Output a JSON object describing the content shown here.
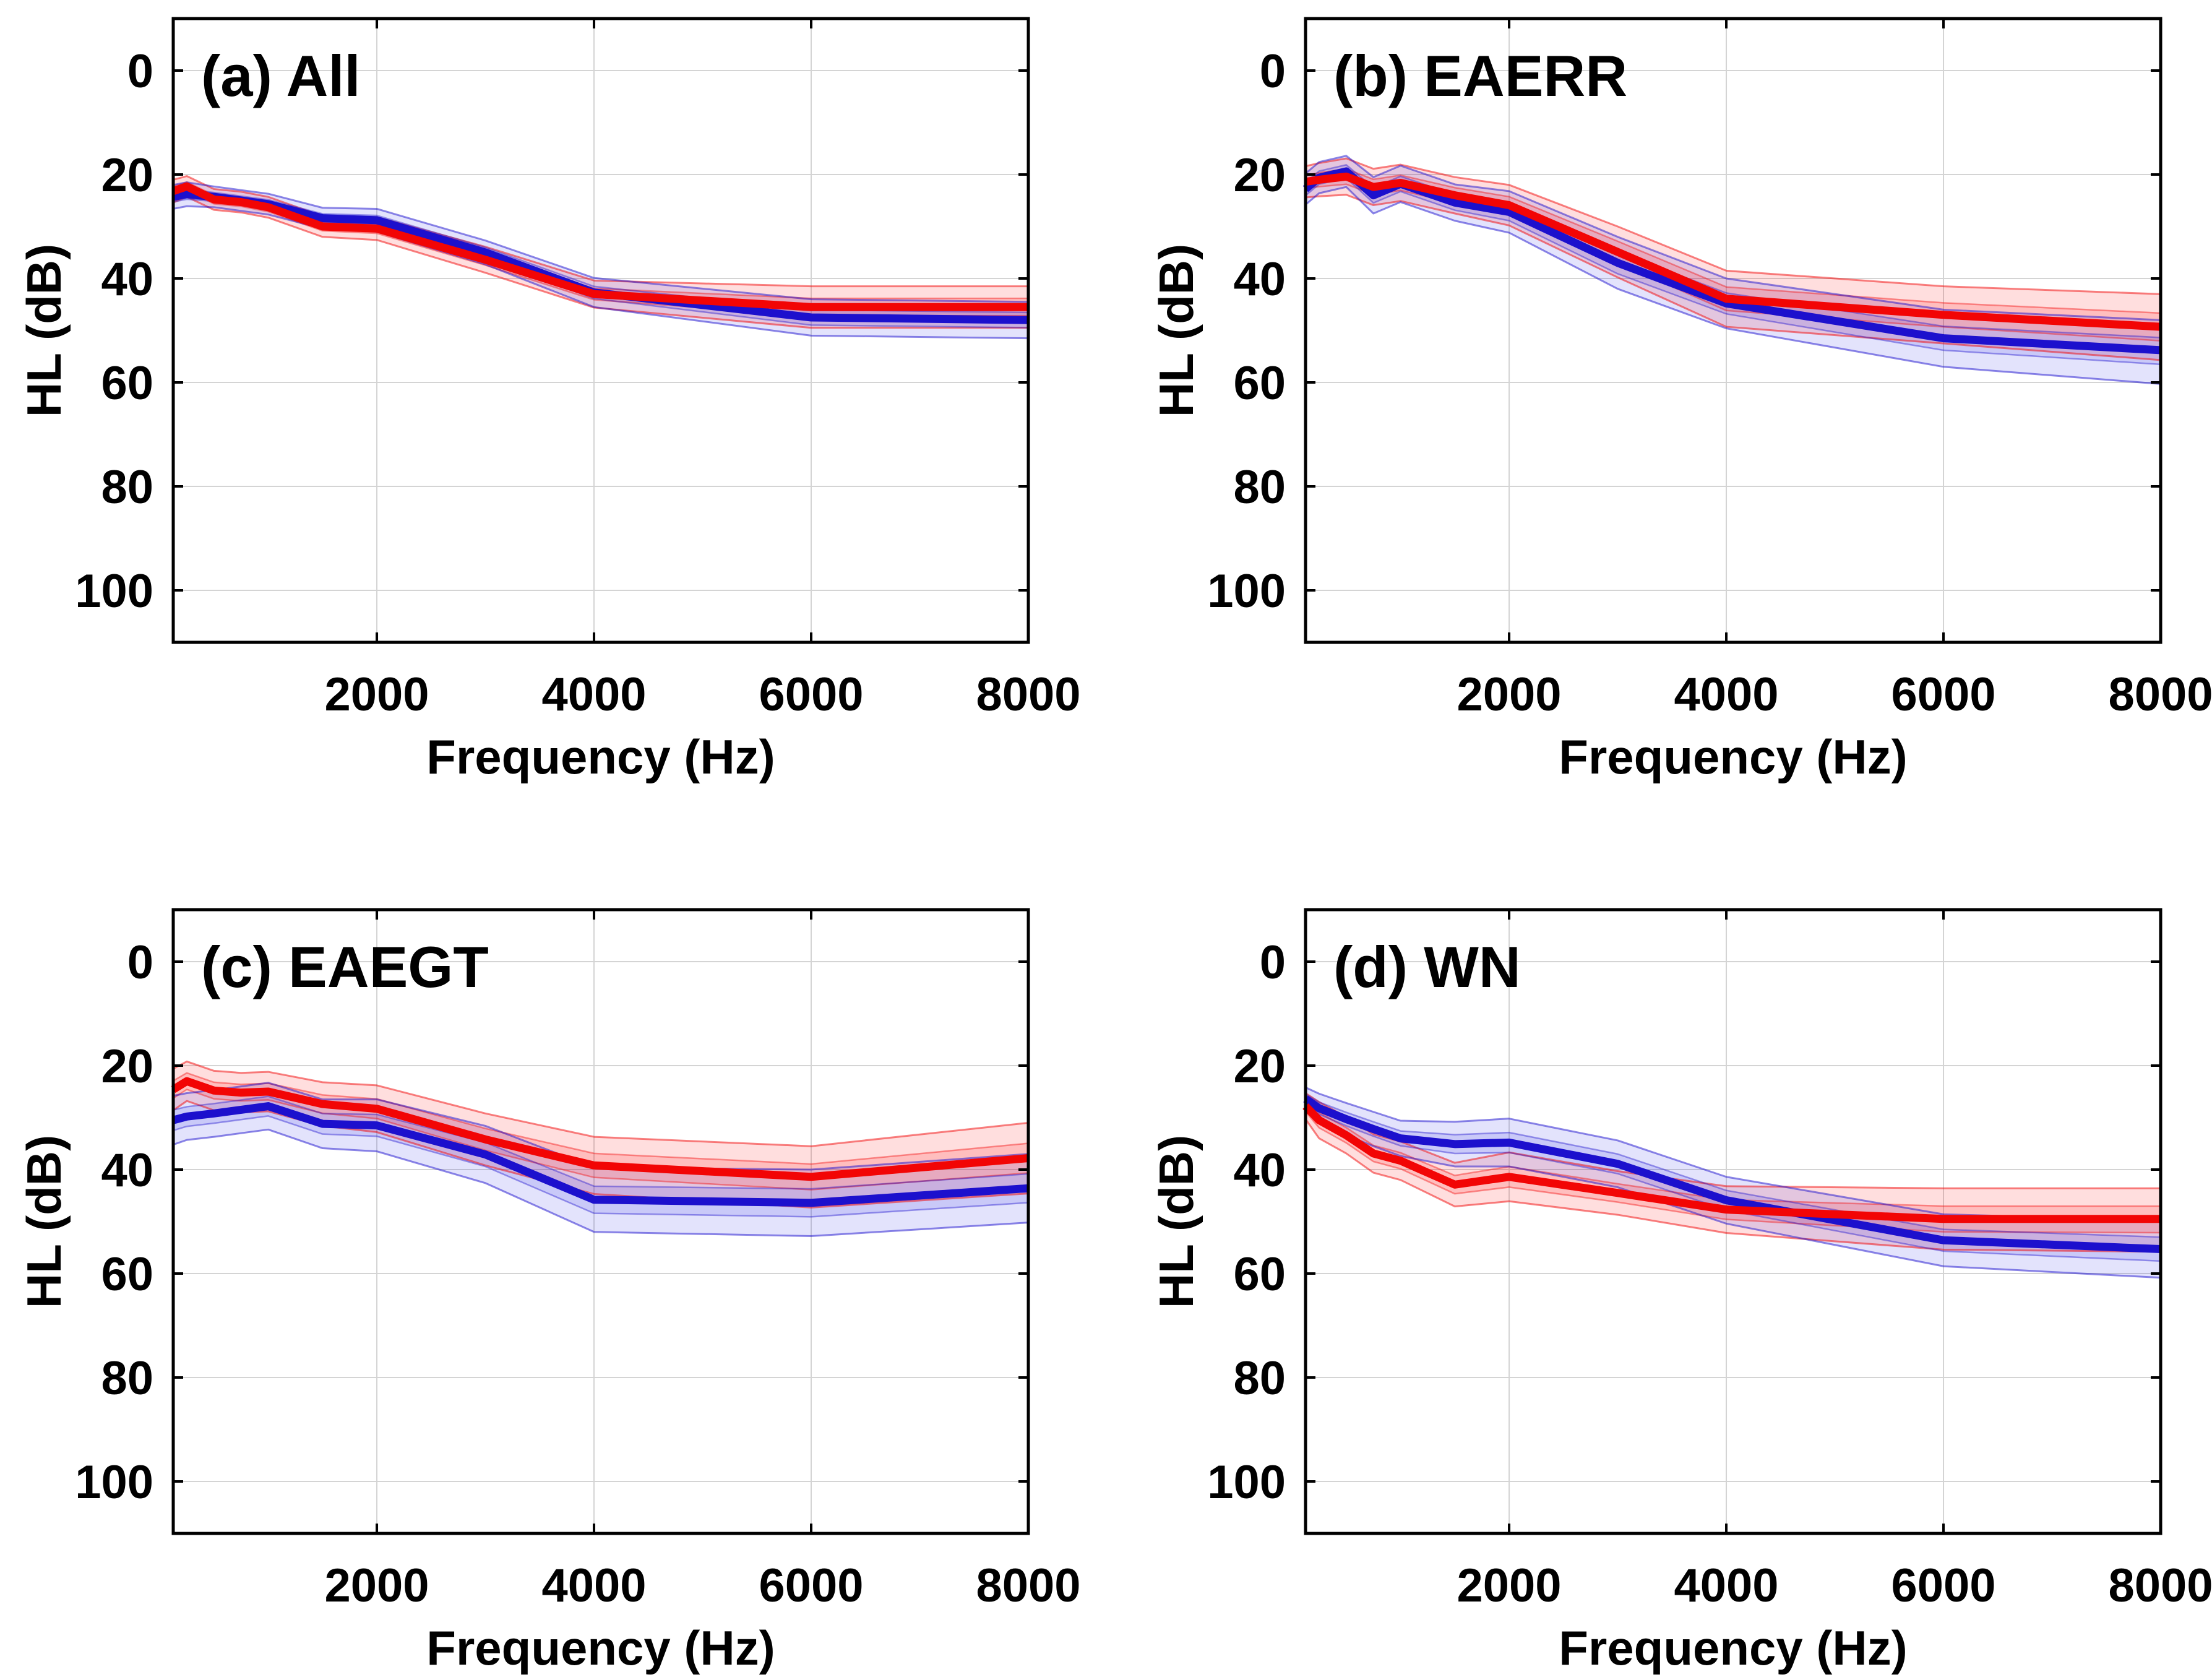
{
  "figure": {
    "kind": "2x2 panel line figure (audiometric thresholds, mean with confidence bands)",
    "background": "#ffffff"
  },
  "axes": {
    "x_label": "Frequency (Hz)",
    "y_label": "HL (dB)",
    "x_tick_values": [
      2000,
      4000,
      6000,
      8000
    ],
    "x_tick_labels": [
      "2000",
      "4000",
      "6000",
      "8000"
    ],
    "y_tick_values": [
      0,
      20,
      40,
      60,
      80,
      100
    ],
    "y_tick_labels": [
      "0",
      "20",
      "40",
      "60",
      "80",
      "100"
    ],
    "xlim": [
      125,
      8000
    ],
    "ylim": [
      -10,
      110
    ],
    "y_axis_reversed": true,
    "grid": "on",
    "legend": "none"
  },
  "colors": {
    "red_line": "#f20505",
    "blue_line": "#1c10cd",
    "red_band": "#ff0000",
    "blue_band": "#2828e6",
    "grid_line": "#d4d4d4",
    "frame": "#000000",
    "text": "#000000"
  },
  "chart_data": [
    {
      "id": "a",
      "title": "(a) All",
      "type": "line",
      "x": [
        125,
        250,
        500,
        750,
        1000,
        1500,
        2000,
        3000,
        4000,
        6000,
        8000
      ],
      "series": [
        {
          "name": "red-mean",
          "color_key": "red",
          "mean": [
            23.2,
            22.3,
            24.8,
            25.3,
            26.3,
            30.0,
            30.4,
            36.4,
            43.0,
            45.5,
            45.5
          ],
          "ci_low": [
            21.0,
            20.3,
            22.8,
            23.3,
            24.3,
            28.0,
            28.2,
            33.9,
            40.4,
            41.5,
            41.5
          ],
          "ci_high": [
            25.4,
            24.3,
            26.8,
            27.3,
            28.3,
            32.0,
            32.6,
            38.9,
            45.6,
            49.5,
            49.5
          ]
        },
        {
          "name": "blue-mean",
          "color_key": "blue",
          "mean": [
            24.3,
            23.8,
            24.3,
            25.0,
            25.7,
            28.4,
            28.8,
            35.0,
            42.7,
            47.5,
            48.0
          ],
          "ci_low": [
            22.0,
            21.5,
            22.3,
            23.0,
            23.7,
            26.4,
            26.6,
            32.7,
            39.9,
            44.0,
            44.5
          ],
          "ci_high": [
            26.6,
            26.1,
            26.3,
            27.0,
            27.7,
            30.4,
            31.0,
            37.3,
            45.5,
            51.0,
            51.5
          ]
        }
      ]
    },
    {
      "id": "b",
      "title": "(b) EAERR",
      "type": "line",
      "x": [
        125,
        250,
        500,
        750,
        1000,
        1500,
        2000,
        3000,
        4000,
        6000,
        8000
      ],
      "series": [
        {
          "name": "red-mean",
          "color_key": "red",
          "mean": [
            21.4,
            21.0,
            20.4,
            22.4,
            21.6,
            24.0,
            25.9,
            34.9,
            43.9,
            47.0,
            49.3
          ],
          "ci_low": [
            18.4,
            17.8,
            16.9,
            18.9,
            18.1,
            20.5,
            22.0,
            30.0,
            38.5,
            41.5,
            43.0
          ],
          "ci_high": [
            24.4,
            24.2,
            23.9,
            25.9,
            25.1,
            27.5,
            29.8,
            39.8,
            49.3,
            52.5,
            55.7
          ]
        },
        {
          "name": "blue-mean",
          "color_key": "blue",
          "mean": [
            22.8,
            20.6,
            19.4,
            24.0,
            21.8,
            25.4,
            27.2,
            37.0,
            44.8,
            51.5,
            53.8
          ],
          "ci_low": [
            19.8,
            17.6,
            16.4,
            20.5,
            18.3,
            21.9,
            23.2,
            32.0,
            40.0,
            46.0,
            48.0
          ],
          "ci_high": [
            25.8,
            23.6,
            22.4,
            27.5,
            25.3,
            28.9,
            31.2,
            42.0,
            49.6,
            57.0,
            60.3
          ]
        }
      ]
    },
    {
      "id": "c",
      "title": "(c) EAEGT",
      "type": "line",
      "x": [
        125,
        250,
        500,
        750,
        1000,
        1500,
        2000,
        3000,
        4000,
        6000,
        8000
      ],
      "series": [
        {
          "name": "red-mean",
          "color_key": "red",
          "mean": [
            24.6,
            23.0,
            24.8,
            25.2,
            25.0,
            27.4,
            28.3,
            34.2,
            39.2,
            41.4,
            37.8
          ],
          "ci_low": [
            20.6,
            19.2,
            21.0,
            21.4,
            21.2,
            23.2,
            23.8,
            29.2,
            33.7,
            35.5,
            31.0
          ],
          "ci_high": [
            28.6,
            26.8,
            28.6,
            29.0,
            28.8,
            31.6,
            32.8,
            39.2,
            44.7,
            47.3,
            44.6
          ]
        },
        {
          "name": "blue-mean",
          "color_key": "blue",
          "mean": [
            30.5,
            29.8,
            29.2,
            28.5,
            27.8,
            31.2,
            31.5,
            37.1,
            45.8,
            46.4,
            43.6
          ],
          "ci_low": [
            25.8,
            25.3,
            24.7,
            24.0,
            23.3,
            26.5,
            26.5,
            31.6,
            39.6,
            40.0,
            37.0
          ],
          "ci_high": [
            35.2,
            34.3,
            33.7,
            33.0,
            32.3,
            35.9,
            36.5,
            42.6,
            52.0,
            52.8,
            50.2
          ]
        }
      ]
    },
    {
      "id": "d",
      "title": "(d) WN",
      "type": "line",
      "x": [
        125,
        250,
        500,
        750,
        1000,
        1500,
        2000,
        3000,
        4000,
        6000,
        8000
      ],
      "series": [
        {
          "name": "red-mean",
          "color_key": "red",
          "mean": [
            27.8,
            30.5,
            33.4,
            36.9,
            38.3,
            42.9,
            41.4,
            44.5,
            47.7,
            49.5,
            49.5
          ],
          "ci_low": [
            25.3,
            27.0,
            29.9,
            33.2,
            34.6,
            38.7,
            36.7,
            40.3,
            43.2,
            43.6,
            43.6
          ],
          "ci_high": [
            30.3,
            34.0,
            36.9,
            40.6,
            42.0,
            47.1,
            46.1,
            48.7,
            52.2,
            55.4,
            55.8
          ]
        },
        {
          "name": "blue-mean",
          "color_key": "blue",
          "mean": [
            26.4,
            28.2,
            30.3,
            32.2,
            34.0,
            35.1,
            34.8,
            38.9,
            45.9,
            53.6,
            55.3
          ],
          "ci_low": [
            24.2,
            25.4,
            27.2,
            28.9,
            30.6,
            30.8,
            30.2,
            34.4,
            41.4,
            48.6,
            49.8
          ],
          "ci_high": [
            28.6,
            31.0,
            33.4,
            35.5,
            37.4,
            39.4,
            39.4,
            43.4,
            50.4,
            58.6,
            60.8
          ]
        }
      ]
    }
  ]
}
